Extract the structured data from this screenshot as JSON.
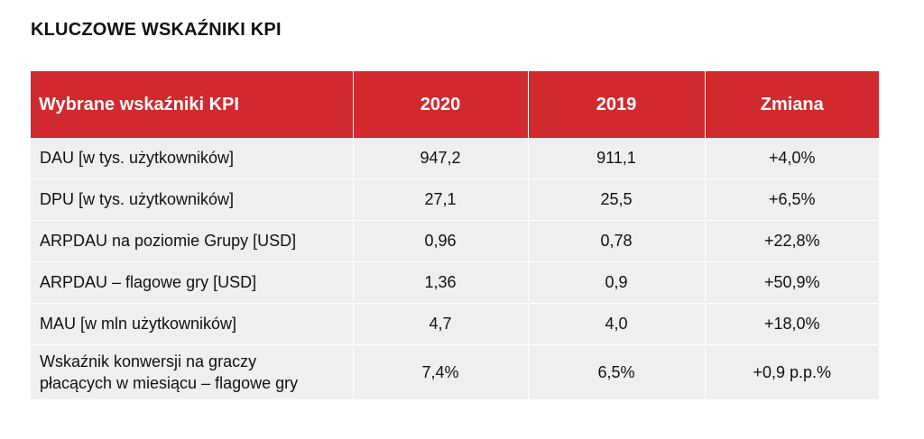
{
  "title": "KLUCZOWE WSKAŹNIKI KPI",
  "colors": {
    "header_bg": "#d1292e",
    "header_text": "#ffffff",
    "row_bg": "#efefef"
  },
  "table": {
    "headers": [
      "Wybrane wskaźniki KPI",
      "2020",
      "2019",
      "Zmiana"
    ],
    "rows": [
      {
        "label": "DAU [w tys. użytkowników]",
        "y2020": "947,2",
        "y2019": "911,1",
        "change": "+4,0%"
      },
      {
        "label": "DPU [w tys. użytkowników]",
        "y2020": "27,1",
        "y2019": "25,5",
        "change": "+6,5%"
      },
      {
        "label": "ARPDAU na poziomie Grupy [USD]",
        "y2020": "0,96",
        "y2019": "0,78",
        "change": "+22,8%"
      },
      {
        "label": "ARPDAU – flagowe gry [USD]",
        "y2020": "1,36",
        "y2019": "0,9",
        "change": "+50,9%"
      },
      {
        "label": "MAU [w mln użytkowników]",
        "y2020": "4,7",
        "y2019": "4,0",
        "change": "+18,0%"
      },
      {
        "label_line1": "Wskaźnik konwersji na graczy",
        "label_line2": "płacących w miesiącu – flagowe gry",
        "y2020": "7,4%",
        "y2019": "6,5%",
        "change": "+0,9 p.p.%"
      }
    ]
  }
}
